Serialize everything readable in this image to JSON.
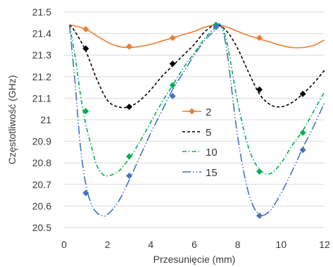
{
  "chart_data": {
    "type": "line",
    "title": "",
    "xlabel": "Przesunięcie (mm)",
    "ylabel": "Częstotliwość (GHz)",
    "xlim": [
      0,
      12
    ],
    "ylim": [
      20.5,
      21.5
    ],
    "xticks": [
      "0",
      "2",
      "4",
      "6",
      "8",
      "10",
      "12"
    ],
    "yticks": [
      "20.5",
      "20.6",
      "20.7",
      "20.8",
      "20.9",
      "21",
      "21.1",
      "21.2",
      "21.3",
      "21.4",
      "21.5"
    ],
    "grid": "horizontal",
    "legend": "right-center",
    "series": [
      {
        "name": "2",
        "color": "#ED7D31",
        "dash": "solid",
        "marker": "diamond",
        "curve": [
          [
            0.25,
            21.44
          ],
          [
            0.5,
            21.435
          ],
          [
            1,
            21.42
          ],
          [
            1.5,
            21.39
          ],
          [
            2,
            21.36
          ],
          [
            2.5,
            21.34
          ],
          [
            3,
            21.335
          ],
          [
            3.5,
            21.34
          ],
          [
            4,
            21.35
          ],
          [
            4.5,
            21.365
          ],
          [
            5,
            21.38
          ],
          [
            5.5,
            21.395
          ],
          [
            6,
            21.41
          ],
          [
            6.5,
            21.43
          ],
          [
            7,
            21.44
          ],
          [
            7.5,
            21.43
          ],
          [
            8,
            21.41
          ],
          [
            8.5,
            21.39
          ],
          [
            9,
            21.375
          ],
          [
            9.5,
            21.36
          ],
          [
            10,
            21.345
          ],
          [
            10.5,
            21.335
          ],
          [
            11,
            21.335
          ],
          [
            11.5,
            21.345
          ],
          [
            12,
            21.37
          ]
        ],
        "markers": [
          [
            1,
            21.42
          ],
          [
            3,
            21.34
          ],
          [
            5,
            21.38
          ],
          [
            7,
            21.44
          ],
          [
            9,
            21.38
          ]
        ]
      },
      {
        "name": "5",
        "color": "#000000",
        "dash": "4,3",
        "marker": "diamond",
        "curve": [
          [
            0.25,
            21.44
          ],
          [
            0.5,
            21.41
          ],
          [
            1,
            21.32
          ],
          [
            1.5,
            21.19
          ],
          [
            2,
            21.09
          ],
          [
            2.5,
            21.06
          ],
          [
            3,
            21.06
          ],
          [
            3.5,
            21.09
          ],
          [
            4,
            21.14
          ],
          [
            4.5,
            21.2
          ],
          [
            5,
            21.25
          ],
          [
            5.5,
            21.3
          ],
          [
            6,
            21.35
          ],
          [
            6.5,
            21.41
          ],
          [
            7,
            21.44
          ],
          [
            7.5,
            21.41
          ],
          [
            8,
            21.33
          ],
          [
            8.5,
            21.22
          ],
          [
            9,
            21.12
          ],
          [
            9.5,
            21.07
          ],
          [
            10,
            21.06
          ],
          [
            10.5,
            21.08
          ],
          [
            11,
            21.12
          ],
          [
            11.5,
            21.17
          ],
          [
            12,
            21.23
          ]
        ],
        "markers": [
          [
            1,
            21.33
          ],
          [
            3,
            21.06
          ],
          [
            5,
            21.26
          ],
          [
            7,
            21.44
          ],
          [
            9,
            21.14
          ],
          [
            11,
            21.12
          ]
        ]
      },
      {
        "name": "10",
        "color": "#00B050",
        "dash": "6,3,1.5,3",
        "marker": "diamond",
        "curve": [
          [
            0.25,
            21.44
          ],
          [
            0.5,
            21.3
          ],
          [
            0.75,
            21.12
          ],
          [
            1,
            20.98
          ],
          [
            1.25,
            20.88
          ],
          [
            1.5,
            20.79
          ],
          [
            1.75,
            20.75
          ],
          [
            2,
            20.74
          ],
          [
            2.5,
            20.76
          ],
          [
            3,
            20.82
          ],
          [
            3.5,
            20.9
          ],
          [
            4,
            20.99
          ],
          [
            4.5,
            21.08
          ],
          [
            5,
            21.16
          ],
          [
            5.5,
            21.24
          ],
          [
            6,
            21.31
          ],
          [
            6.5,
            21.38
          ],
          [
            7,
            21.43
          ],
          [
            7.2,
            21.44
          ],
          [
            7.5,
            21.36
          ],
          [
            8,
            21.08
          ],
          [
            8.5,
            20.87
          ],
          [
            9,
            20.77
          ],
          [
            9.5,
            20.75
          ],
          [
            10,
            20.8
          ],
          [
            10.5,
            20.88
          ],
          [
            11,
            20.95
          ],
          [
            11.5,
            21.04
          ],
          [
            12,
            21.13
          ]
        ],
        "markers": [
          [
            1,
            21.04
          ],
          [
            3,
            20.83
          ],
          [
            5,
            21.16
          ],
          [
            7,
            21.44
          ],
          [
            9,
            20.76
          ],
          [
            11,
            20.94
          ]
        ]
      },
      {
        "name": "15",
        "color": "#4472C4",
        "dash": "12,3,1.5,3,1.5,3",
        "marker": "diamond",
        "curve": [
          [
            0.25,
            21.44
          ],
          [
            0.5,
            21.18
          ],
          [
            0.75,
            20.88
          ],
          [
            1,
            20.7
          ],
          [
            1.25,
            20.61
          ],
          [
            1.5,
            20.57
          ],
          [
            1.75,
            20.555
          ],
          [
            2,
            20.56
          ],
          [
            2.5,
            20.62
          ],
          [
            3,
            20.72
          ],
          [
            3.5,
            20.83
          ],
          [
            4,
            20.94
          ],
          [
            4.5,
            21.04
          ],
          [
            5,
            21.14
          ],
          [
            5.5,
            21.22
          ],
          [
            6,
            21.3
          ],
          [
            6.5,
            21.37
          ],
          [
            7,
            21.42
          ],
          [
            7.2,
            21.44
          ],
          [
            7.5,
            21.32
          ],
          [
            8,
            20.92
          ],
          [
            8.5,
            20.66
          ],
          [
            9,
            20.56
          ],
          [
            9.5,
            20.58
          ],
          [
            10,
            20.66
          ],
          [
            10.5,
            20.76
          ],
          [
            11,
            20.87
          ],
          [
            11.5,
            20.97
          ],
          [
            12,
            21.08
          ]
        ],
        "markers": [
          [
            1,
            20.66
          ],
          [
            3,
            20.74
          ],
          [
            5,
            21.11
          ],
          [
            7,
            21.43
          ],
          [
            9,
            20.555
          ],
          [
            11,
            20.86
          ]
        ]
      }
    ]
  }
}
